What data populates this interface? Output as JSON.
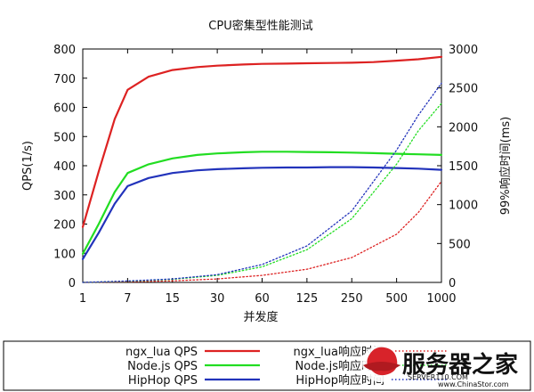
{
  "chart_data": {
    "type": "line",
    "title": "CPU密集型性能测试",
    "xlabel": "并发度",
    "ylabel_left": "QPS(1/s)",
    "ylabel_right": "99%响应时间(ms)",
    "x": [
      1,
      7,
      15,
      30,
      60,
      125,
      250,
      500,
      1000
    ],
    "x_scale": "log",
    "ylim_left": [
      0,
      800
    ],
    "yticks_left": [
      0,
      100,
      200,
      300,
      400,
      500,
      600,
      700,
      800
    ],
    "ylim_right": [
      0,
      3000
    ],
    "yticks_right": [
      0,
      500,
      1000,
      1500,
      2000,
      2500,
      3000
    ],
    "grid": false,
    "legend_position": "bottom",
    "series": [
      {
        "name": "ngx_lua QPS",
        "axis": "left",
        "style": "solid",
        "color": "#dd2222",
        "points": [
          [
            1,
            190
          ],
          [
            2,
            380
          ],
          [
            4,
            560
          ],
          [
            7,
            660
          ],
          [
            10,
            705
          ],
          [
            15,
            728
          ],
          [
            22,
            738
          ],
          [
            30,
            743
          ],
          [
            45,
            747
          ],
          [
            60,
            749
          ],
          [
            90,
            750
          ],
          [
            125,
            751
          ],
          [
            180,
            752
          ],
          [
            250,
            753
          ],
          [
            350,
            755
          ],
          [
            500,
            760
          ],
          [
            700,
            765
          ],
          [
            1000,
            773
          ]
        ]
      },
      {
        "name": "Node.js QPS",
        "axis": "left",
        "style": "solid",
        "color": "#22dd22",
        "points": [
          [
            1,
            98
          ],
          [
            2,
            200
          ],
          [
            4,
            310
          ],
          [
            7,
            375
          ],
          [
            10,
            405
          ],
          [
            15,
            425
          ],
          [
            22,
            437
          ],
          [
            30,
            442
          ],
          [
            45,
            446
          ],
          [
            60,
            448
          ],
          [
            90,
            448
          ],
          [
            125,
            447
          ],
          [
            180,
            446
          ],
          [
            250,
            445
          ],
          [
            350,
            443
          ],
          [
            500,
            441
          ],
          [
            700,
            439
          ],
          [
            1000,
            437
          ]
        ]
      },
      {
        "name": "HipHop QPS",
        "axis": "left",
        "style": "solid",
        "color": "#2233bb",
        "points": [
          [
            1,
            80
          ],
          [
            2,
            170
          ],
          [
            4,
            270
          ],
          [
            7,
            330
          ],
          [
            10,
            358
          ],
          [
            15,
            375
          ],
          [
            22,
            384
          ],
          [
            30,
            388
          ],
          [
            45,
            391
          ],
          [
            60,
            393
          ],
          [
            90,
            394
          ],
          [
            125,
            394
          ],
          [
            180,
            395
          ],
          [
            250,
            395
          ],
          [
            350,
            394
          ],
          [
            500,
            392
          ],
          [
            700,
            390
          ],
          [
            1000,
            386
          ]
        ]
      },
      {
        "name": "ngx_lua响应时间",
        "axis": "right",
        "style": "dotted",
        "color": "#dd2222",
        "points": [
          [
            1,
            0
          ],
          [
            7,
            8
          ],
          [
            15,
            20
          ],
          [
            30,
            45
          ],
          [
            60,
            90
          ],
          [
            125,
            170
          ],
          [
            250,
            320
          ],
          [
            500,
            620
          ],
          [
            700,
            900
          ],
          [
            1000,
            1300
          ]
        ]
      },
      {
        "name": "Node.js响应时间",
        "axis": "right",
        "style": "dotted",
        "color": "#22dd22",
        "points": [
          [
            1,
            0
          ],
          [
            7,
            15
          ],
          [
            15,
            40
          ],
          [
            30,
            90
          ],
          [
            60,
            200
          ],
          [
            125,
            420
          ],
          [
            250,
            820
          ],
          [
            500,
            1520
          ],
          [
            700,
            1950
          ],
          [
            1000,
            2300
          ]
        ]
      },
      {
        "name": "HipHop响应时间",
        "axis": "right",
        "style": "dotted",
        "color": "#2233bb",
        "points": [
          [
            1,
            0
          ],
          [
            7,
            18
          ],
          [
            15,
            45
          ],
          [
            30,
            100
          ],
          [
            60,
            230
          ],
          [
            125,
            470
          ],
          [
            250,
            920
          ],
          [
            500,
            1700
          ],
          [
            700,
            2150
          ],
          [
            1000,
            2560
          ]
        ]
      }
    ]
  },
  "watermark": {
    "brand": "服务器之家",
    "domain_top": "SERVER110.COM",
    "domain_bottom": "www.ChinaStor.com"
  },
  "colors": {
    "ngx_lua": "#dd2222",
    "nodejs": "#22dd22",
    "hiphop": "#2233bb",
    "watermark_red": "#d8232a"
  }
}
